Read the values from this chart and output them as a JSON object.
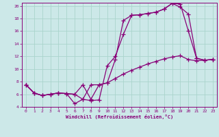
{
  "xlabel": "Windchill (Refroidissement éolien,°C)",
  "background_color": "#cce8e8",
  "grid_color": "#aad4cc",
  "line_color": "#880077",
  "xlim": [
    -0.5,
    23.5
  ],
  "ylim": [
    4,
    20.5
  ],
  "yticks": [
    4,
    6,
    8,
    10,
    12,
    14,
    16,
    18,
    20
  ],
  "xticks": [
    0,
    1,
    2,
    3,
    4,
    5,
    6,
    7,
    8,
    9,
    10,
    11,
    12,
    13,
    14,
    15,
    16,
    17,
    18,
    19,
    20,
    21,
    22,
    23
  ],
  "line1_x": [
    0,
    1,
    2,
    3,
    4,
    5,
    6,
    7,
    8,
    9,
    10,
    11,
    12,
    13,
    14,
    15,
    16,
    17,
    18,
    19,
    20,
    21,
    22,
    23
  ],
  "line1_y": [
    7.5,
    6.2,
    5.8,
    6.0,
    6.2,
    6.1,
    6.0,
    5.2,
    5.0,
    5.1,
    10.5,
    12.0,
    15.5,
    18.5,
    18.6,
    18.8,
    19.0,
    19.5,
    20.4,
    20.3,
    16.0,
    11.7,
    11.4,
    11.5
  ],
  "line2_x": [
    0,
    1,
    2,
    3,
    4,
    5,
    6,
    7,
    8,
    9,
    10,
    11,
    12,
    13,
    14,
    15,
    16,
    17,
    18,
    19,
    20,
    21,
    22,
    23
  ],
  "line2_y": [
    7.5,
    6.2,
    5.8,
    6.0,
    6.2,
    6.1,
    6.0,
    7.5,
    5.2,
    7.5,
    7.8,
    11.5,
    17.7,
    18.5,
    18.6,
    18.8,
    19.0,
    19.5,
    20.4,
    19.8,
    18.7,
    11.7,
    11.4,
    11.5
  ],
  "line3_x": [
    0,
    1,
    2,
    3,
    4,
    5,
    6,
    7,
    8,
    9,
    10,
    11,
    12,
    13,
    14,
    15,
    16,
    17,
    18,
    19,
    20,
    21,
    22,
    23
  ],
  "line3_y": [
    7.5,
    6.2,
    5.8,
    6.0,
    6.2,
    6.1,
    4.5,
    5.2,
    7.5,
    7.5,
    7.8,
    8.5,
    9.2,
    9.8,
    10.3,
    10.8,
    11.2,
    11.6,
    11.9,
    12.1,
    11.5,
    11.3,
    11.4,
    11.5
  ]
}
